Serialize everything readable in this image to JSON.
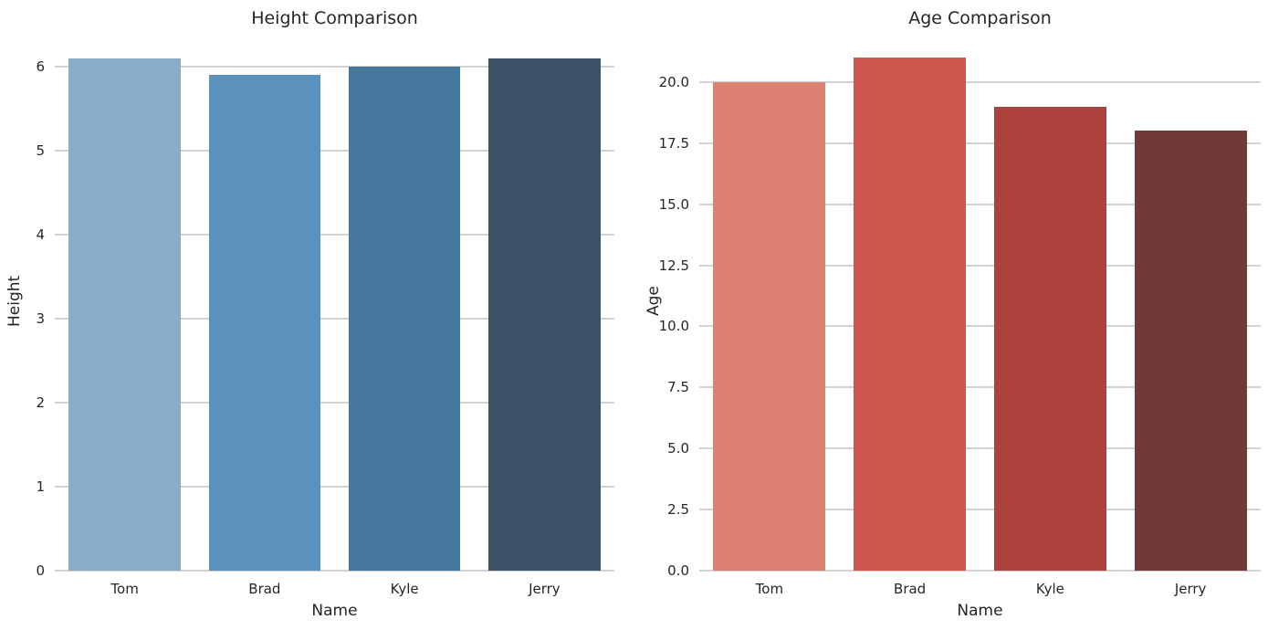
{
  "figure": {
    "background": "#FFFFFF",
    "text_color": "#262626",
    "grid_color": "#D2D2D2"
  },
  "chart_data": [
    {
      "type": "bar",
      "title": "Height Comparison",
      "xlabel": "Name",
      "ylabel": "Height",
      "categories": [
        "Tom",
        "Brad",
        "Kyle",
        "Jerry"
      ],
      "values": [
        6.1,
        5.9,
        6.0,
        6.1
      ],
      "bar_colors": [
        "#88AECB",
        "#5B92BD",
        "#44779B",
        "#3B5267"
      ],
      "ylim": [
        0,
        6.41
      ],
      "yticks": [
        0,
        1,
        2,
        3,
        4,
        5,
        6
      ],
      "ytick_labels": [
        "0",
        "1",
        "2",
        "3",
        "4",
        "5",
        "6"
      ],
      "grid": true,
      "legend": null
    },
    {
      "type": "bar",
      "title": "Age Comparison",
      "xlabel": "Name",
      "ylabel": "Age",
      "categories": [
        "Tom",
        "Brad",
        "Kyle",
        "Jerry"
      ],
      "values": [
        20,
        21,
        19,
        18
      ],
      "bar_colors": [
        "#DD8172",
        "#CE564E",
        "#AD413C",
        "#713A38"
      ],
      "ylim": [
        0,
        22.05
      ],
      "yticks": [
        0,
        2.5,
        5,
        7.5,
        10,
        12.5,
        15,
        17.5,
        20
      ],
      "ytick_labels": [
        "0.0",
        "2.5",
        "5.0",
        "7.5",
        "10.0",
        "12.5",
        "15.0",
        "17.5",
        "20.0"
      ],
      "grid": true,
      "legend": null
    }
  ]
}
